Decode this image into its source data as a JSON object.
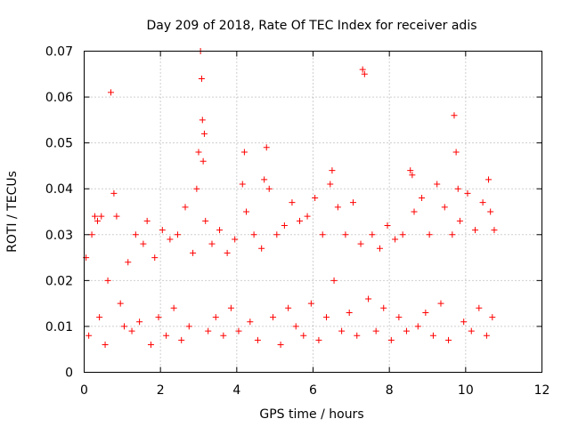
{
  "chart_data": {
    "type": "scatter",
    "title": "Day 209 of 2018, Rate Of TEC Index for receiver adis",
    "xlabel": "GPS time / hours",
    "ylabel": "ROTI / TECUs",
    "xlim": [
      0,
      12
    ],
    "ylim": [
      0,
      0.07
    ],
    "x_ticks": [
      "0",
      "2",
      "4",
      "6",
      "8",
      "10",
      "12"
    ],
    "y_ticks": [
      "0",
      "0.01",
      "0.02",
      "0.03",
      "0.04",
      "0.05",
      "0.06",
      "0.07"
    ],
    "grid": true,
    "marker": "+",
    "color": "#ff0000",
    "series": [
      {
        "name": "ROTI",
        "x": [
          0.05,
          0.12,
          0.2,
          0.28,
          0.35,
          0.4,
          0.45,
          0.55,
          0.62,
          0.7,
          0.78,
          0.85,
          0.95,
          1.05,
          1.15,
          1.25,
          1.35,
          1.45,
          1.55,
          1.65,
          1.75,
          1.85,
          1.95,
          2.05,
          2.15,
          2.25,
          2.35,
          2.45,
          2.55,
          2.65,
          2.75,
          2.85,
          2.95,
          3.0,
          3.05,
          3.08,
          3.1,
          3.12,
          3.15,
          3.18,
          3.25,
          3.35,
          3.45,
          3.55,
          3.65,
          3.75,
          3.85,
          3.95,
          4.05,
          4.15,
          4.2,
          4.25,
          4.35,
          4.45,
          4.55,
          4.65,
          4.72,
          4.78,
          4.85,
          4.95,
          5.05,
          5.15,
          5.25,
          5.35,
          5.45,
          5.55,
          5.65,
          5.75,
          5.85,
          5.95,
          6.05,
          6.15,
          6.25,
          6.35,
          6.45,
          6.5,
          6.55,
          6.65,
          6.75,
          6.85,
          6.95,
          7.05,
          7.15,
          7.25,
          7.3,
          7.35,
          7.45,
          7.55,
          7.65,
          7.75,
          7.85,
          7.95,
          8.05,
          8.15,
          8.25,
          8.35,
          8.45,
          8.55,
          8.6,
          8.65,
          8.75,
          8.85,
          8.95,
          9.05,
          9.15,
          9.25,
          9.35,
          9.45,
          9.55,
          9.65,
          9.7,
          9.75,
          9.8,
          9.85,
          9.95,
          10.05,
          10.15,
          10.25,
          10.35,
          10.45,
          10.55,
          10.6,
          10.65,
          10.7,
          10.75
        ],
        "y": [
          0.025,
          0.008,
          0.03,
          0.034,
          0.033,
          0.012,
          0.034,
          0.006,
          0.02,
          0.061,
          0.039,
          0.034,
          0.015,
          0.01,
          0.024,
          0.009,
          0.03,
          0.011,
          0.028,
          0.033,
          0.006,
          0.025,
          0.012,
          0.031,
          0.008,
          0.029,
          0.014,
          0.03,
          0.007,
          0.036,
          0.01,
          0.026,
          0.04,
          0.048,
          0.07,
          0.064,
          0.055,
          0.046,
          0.052,
          0.033,
          0.009,
          0.028,
          0.012,
          0.031,
          0.008,
          0.026,
          0.014,
          0.029,
          0.009,
          0.041,
          0.048,
          0.035,
          0.011,
          0.03,
          0.007,
          0.027,
          0.042,
          0.049,
          0.04,
          0.012,
          0.03,
          0.006,
          0.032,
          0.014,
          0.037,
          0.01,
          0.033,
          0.008,
          0.034,
          0.015,
          0.038,
          0.007,
          0.03,
          0.012,
          0.041,
          0.044,
          0.02,
          0.036,
          0.009,
          0.03,
          0.013,
          0.037,
          0.008,
          0.028,
          0.066,
          0.065,
          0.016,
          0.03,
          0.009,
          0.027,
          0.014,
          0.032,
          0.007,
          0.029,
          0.012,
          0.03,
          0.009,
          0.044,
          0.043,
          0.035,
          0.01,
          0.038,
          0.013,
          0.03,
          0.008,
          0.041,
          0.015,
          0.036,
          0.007,
          0.03,
          0.056,
          0.048,
          0.04,
          0.033,
          0.011,
          0.039,
          0.009,
          0.031,
          0.014,
          0.037,
          0.008,
          0.042,
          0.035,
          0.012,
          0.031
        ]
      }
    ]
  }
}
